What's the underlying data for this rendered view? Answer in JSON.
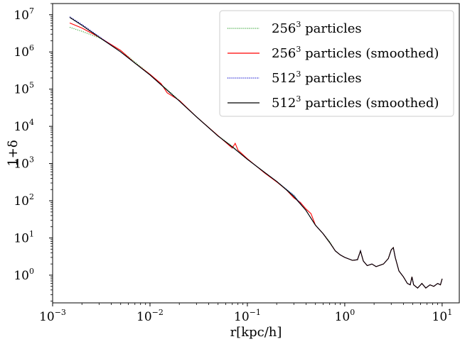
{
  "chart_data": {
    "type": "line",
    "title": "",
    "xlabel": "r[kpc/h]",
    "ylabel": "1+δ",
    "xscale": "log",
    "yscale": "log",
    "xlim": [
      0.001,
      15
    ],
    "ylim": [
      0.18,
      20000000
    ],
    "grid": false,
    "legend_position": "top-right",
    "xticks": [
      {
        "base": "10",
        "exp": "−3",
        "value": 0.001
      },
      {
        "base": "10",
        "exp": "−2",
        "value": 0.01
      },
      {
        "base": "10",
        "exp": "−1",
        "value": 0.1
      },
      {
        "base": "10",
        "exp": "0",
        "value": 1
      },
      {
        "base": "10",
        "exp": "1",
        "value": 10
      }
    ],
    "yticks": [
      {
        "base": "10",
        "exp": "0",
        "value": 1
      },
      {
        "base": "10",
        "exp": "1",
        "value": 10
      },
      {
        "base": "10",
        "exp": "2",
        "value": 100
      },
      {
        "base": "10",
        "exp": "3",
        "value": 1000
      },
      {
        "base": "10",
        "exp": "4",
        "value": 10000
      },
      {
        "base": "10",
        "exp": "5",
        "value": 100000
      },
      {
        "base": "10",
        "exp": "6",
        "value": 1000000
      },
      {
        "base": "10",
        "exp": "7",
        "value": 10000000
      }
    ],
    "series": [
      {
        "name": {
          "base": "256",
          "exp": "3",
          "suffix": " particles"
        },
        "color": "#2ca02c",
        "style": "dotted",
        "points": [
          [
            0.0015,
            4600000
          ],
          [
            0.002,
            3600000
          ],
          [
            0.003,
            2400000
          ],
          [
            0.005,
            1100000
          ],
          [
            0.01,
            250000
          ],
          [
            0.02,
            50000
          ],
          [
            0.03,
            18000
          ],
          [
            0.05,
            5600
          ],
          [
            0.07,
            2900
          ],
          [
            0.1,
            1300
          ],
          [
            0.15,
            580
          ],
          [
            0.2,
            330
          ],
          [
            0.3,
            140
          ],
          [
            0.4,
            55
          ],
          [
            0.5,
            22
          ],
          [
            0.6,
            13
          ],
          [
            0.7,
            8
          ],
          [
            0.8,
            4.5
          ],
          [
            0.9,
            3.5
          ],
          [
            1.0,
            3
          ],
          [
            1.2,
            2.5
          ],
          [
            1.35,
            2.6
          ],
          [
            1.45,
            4.5
          ],
          [
            1.55,
            2.4
          ],
          [
            1.7,
            1.8
          ],
          [
            1.9,
            2.0
          ],
          [
            2.1,
            1.7
          ],
          [
            2.5,
            2.0
          ],
          [
            2.8,
            2.8
          ],
          [
            3.0,
            4.8
          ],
          [
            3.15,
            5.5
          ],
          [
            3.3,
            3.0
          ],
          [
            3.6,
            1.3
          ],
          [
            4.0,
            0.9
          ],
          [
            4.4,
            0.6
          ],
          [
            4.7,
            0.55
          ],
          [
            4.9,
            0.9
          ],
          [
            5.1,
            0.55
          ],
          [
            5.6,
            0.45
          ],
          [
            6.2,
            0.6
          ],
          [
            6.8,
            0.45
          ],
          [
            7.5,
            0.55
          ],
          [
            8.2,
            0.5
          ],
          [
            9.0,
            0.6
          ],
          [
            9.6,
            0.55
          ],
          [
            10.0,
            0.8
          ]
        ]
      },
      {
        "name": {
          "base": "256",
          "exp": "3",
          "suffix": " particles (smoothed)"
        },
        "color": "#ff0000",
        "style": "solid",
        "points": [
          [
            0.0015,
            6000000
          ],
          [
            0.002,
            4400000
          ],
          [
            0.003,
            2500000
          ],
          [
            0.005,
            1100000
          ],
          [
            0.007,
            500000
          ],
          [
            0.01,
            250000
          ],
          [
            0.013,
            140000
          ],
          [
            0.015,
            80000
          ],
          [
            0.02,
            50000
          ],
          [
            0.03,
            18000
          ],
          [
            0.05,
            5600
          ],
          [
            0.07,
            2600
          ],
          [
            0.075,
            3500
          ],
          [
            0.08,
            2300
          ],
          [
            0.1,
            1350
          ],
          [
            0.15,
            560
          ],
          [
            0.2,
            320
          ],
          [
            0.25,
            200
          ],
          [
            0.3,
            120
          ],
          [
            0.35,
            90
          ],
          [
            0.4,
            60
          ],
          [
            0.45,
            45
          ],
          [
            0.5,
            22
          ],
          [
            0.6,
            13
          ],
          [
            0.7,
            7.5
          ],
          [
            0.8,
            4.5
          ],
          [
            0.9,
            3.5
          ],
          [
            1.0,
            3
          ],
          [
            1.2,
            2.5
          ],
          [
            1.35,
            2.6
          ],
          [
            1.45,
            4.5
          ],
          [
            1.55,
            2.4
          ],
          [
            1.7,
            1.8
          ],
          [
            1.9,
            2.0
          ],
          [
            2.1,
            1.7
          ],
          [
            2.5,
            2.0
          ],
          [
            2.8,
            2.8
          ],
          [
            3.0,
            4.8
          ],
          [
            3.15,
            5.5
          ],
          [
            3.3,
            3.0
          ],
          [
            3.6,
            1.3
          ],
          [
            4.0,
            0.9
          ],
          [
            4.4,
            0.6
          ],
          [
            4.7,
            0.55
          ],
          [
            4.9,
            0.9
          ],
          [
            5.1,
            0.55
          ],
          [
            5.6,
            0.45
          ],
          [
            6.2,
            0.6
          ],
          [
            6.8,
            0.45
          ],
          [
            7.5,
            0.55
          ],
          [
            8.2,
            0.5
          ],
          [
            9.0,
            0.6
          ],
          [
            9.6,
            0.55
          ],
          [
            10.0,
            0.8
          ]
        ]
      },
      {
        "name": {
          "base": "512",
          "exp": "3",
          "suffix": " particles"
        },
        "color": "#0000cc",
        "style": "dotted",
        "points": [
          [
            0.0015,
            8800000
          ],
          [
            0.002,
            5500000
          ],
          [
            0.003,
            2600000
          ],
          [
            0.005,
            1000000
          ],
          [
            0.01,
            240000
          ],
          [
            0.02,
            48000
          ],
          [
            0.03,
            18000
          ],
          [
            0.05,
            5500
          ],
          [
            0.07,
            2800
          ],
          [
            0.1,
            1300
          ],
          [
            0.15,
            580
          ],
          [
            0.2,
            330
          ],
          [
            0.3,
            140
          ],
          [
            0.4,
            55
          ],
          [
            0.5,
            22
          ],
          [
            0.6,
            13
          ],
          [
            0.7,
            7.5
          ],
          [
            0.8,
            4.5
          ],
          [
            0.9,
            3.5
          ],
          [
            1.0,
            3
          ],
          [
            1.2,
            2.5
          ],
          [
            1.35,
            2.6
          ],
          [
            1.45,
            4.5
          ],
          [
            1.55,
            2.4
          ],
          [
            1.7,
            1.8
          ],
          [
            1.9,
            2.0
          ],
          [
            2.1,
            1.7
          ],
          [
            2.5,
            2.0
          ],
          [
            2.8,
            2.8
          ],
          [
            3.0,
            4.8
          ],
          [
            3.15,
            5.5
          ],
          [
            3.3,
            3.0
          ],
          [
            3.6,
            1.3
          ],
          [
            4.0,
            0.9
          ],
          [
            4.4,
            0.6
          ],
          [
            4.7,
            0.55
          ],
          [
            4.9,
            0.9
          ],
          [
            5.1,
            0.55
          ],
          [
            5.6,
            0.45
          ],
          [
            6.2,
            0.6
          ],
          [
            6.8,
            0.45
          ],
          [
            7.5,
            0.55
          ],
          [
            8.2,
            0.5
          ],
          [
            9.0,
            0.6
          ],
          [
            9.6,
            0.55
          ],
          [
            10.0,
            0.8
          ]
        ]
      },
      {
        "name": {
          "base": "512",
          "exp": "3",
          "suffix": " particles (smoothed)"
        },
        "color": "#000000",
        "style": "solid",
        "points": [
          [
            0.0015,
            8500000
          ],
          [
            0.002,
            5200000
          ],
          [
            0.003,
            2500000
          ],
          [
            0.005,
            1000000
          ],
          [
            0.01,
            240000
          ],
          [
            0.02,
            48000
          ],
          [
            0.03,
            18000
          ],
          [
            0.05,
            5500
          ],
          [
            0.07,
            2800
          ],
          [
            0.1,
            1300
          ],
          [
            0.15,
            580
          ],
          [
            0.2,
            330
          ],
          [
            0.25,
            200
          ],
          [
            0.3,
            130
          ],
          [
            0.4,
            55
          ],
          [
            0.5,
            22
          ],
          [
            0.6,
            13
          ],
          [
            0.7,
            7.5
          ],
          [
            0.8,
            4.5
          ],
          [
            0.9,
            3.5
          ],
          [
            1.0,
            3
          ],
          [
            1.2,
            2.5
          ],
          [
            1.35,
            2.6
          ],
          [
            1.45,
            4.5
          ],
          [
            1.55,
            2.4
          ],
          [
            1.7,
            1.8
          ],
          [
            1.9,
            2.0
          ],
          [
            2.1,
            1.7
          ],
          [
            2.5,
            2.0
          ],
          [
            2.8,
            2.8
          ],
          [
            3.0,
            4.8
          ],
          [
            3.15,
            5.5
          ],
          [
            3.3,
            3.0
          ],
          [
            3.6,
            1.3
          ],
          [
            4.0,
            0.9
          ],
          [
            4.4,
            0.6
          ],
          [
            4.7,
            0.55
          ],
          [
            4.9,
            0.9
          ],
          [
            5.1,
            0.55
          ],
          [
            5.6,
            0.45
          ],
          [
            6.2,
            0.6
          ],
          [
            6.8,
            0.45
          ],
          [
            7.5,
            0.55
          ],
          [
            8.2,
            0.5
          ],
          [
            9.0,
            0.6
          ],
          [
            9.6,
            0.55
          ],
          [
            10.0,
            0.8
          ]
        ]
      }
    ]
  }
}
